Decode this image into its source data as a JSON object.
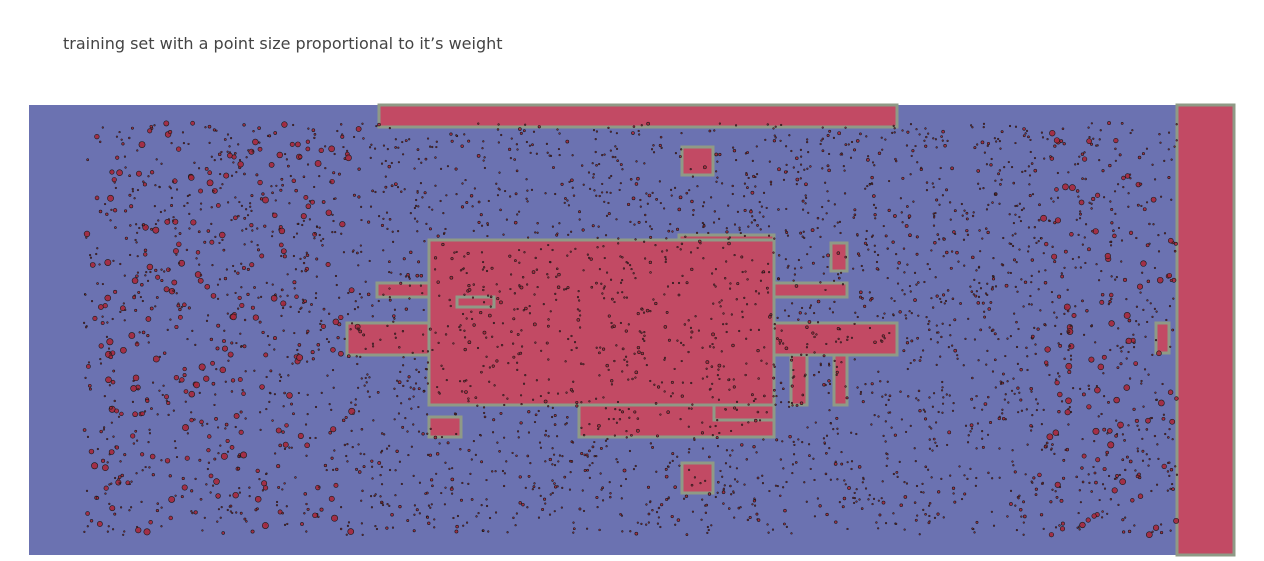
{
  "chart_data": {
    "type": "scatter",
    "title": "training set with a point size proportional to it’s weight",
    "xlabel": "",
    "ylabel": "",
    "xlim": [
      0,
      1205
    ],
    "ylim": [
      0,
      450
    ],
    "grid": false,
    "legend": "none",
    "colors": {
      "class_negative": "#6b72b1",
      "class_positive": "#c24a64",
      "boundary": "#8f9a86",
      "point_fill": "#a8283c",
      "point_edge": "#1a1a1a"
    },
    "regions": [
      {
        "name": "top-strip",
        "x": [
          350,
          868
        ],
        "y": [
          428,
          450
        ]
      },
      {
        "name": "right-strip",
        "x": [
          1148,
          1205
        ],
        "y": [
          0,
          450
        ]
      },
      {
        "name": "small-top",
        "x": [
          653,
          684
        ],
        "y": [
          380,
          408
        ]
      },
      {
        "name": "central-body",
        "x": [
          400,
          745
        ],
        "y": [
          150,
          315
        ]
      },
      {
        "name": "upper-step",
        "x": [
          650,
          745
        ],
        "y": [
          315,
          320
        ]
      },
      {
        "name": "left-upper-arm",
        "x": [
          348,
          400
        ],
        "y": [
          258,
          272
        ]
      },
      {
        "name": "left-lower-arm",
        "x": [
          318,
          400
        ],
        "y": [
          200,
          232
        ]
      },
      {
        "name": "left-hole",
        "x": [
          428,
          465
        ],
        "y": [
          248,
          258
        ]
      },
      {
        "name": "right-upper-arm",
        "x": [
          745,
          818
        ],
        "y": [
          258,
          272
        ]
      },
      {
        "name": "right-lower-arm",
        "x": [
          745,
          868
        ],
        "y": [
          200,
          232
        ]
      },
      {
        "name": "right-small",
        "x": [
          802,
          818
        ],
        "y": [
          284,
          312
        ]
      },
      {
        "name": "bottom-step",
        "x": [
          550,
          745
        ],
        "y": [
          118,
          150
        ]
      },
      {
        "name": "bottom-right-bar",
        "x": [
          685,
          745
        ],
        "y": [
          135,
          150
        ]
      },
      {
        "name": "left-bottom-small",
        "x": [
          400,
          432
        ],
        "y": [
          118,
          138
        ]
      },
      {
        "name": "right-pillar-1",
        "x": [
          762,
          778
        ],
        "y": [
          150,
          200
        ]
      },
      {
        "name": "right-pillar-2",
        "x": [
          805,
          818
        ],
        "y": [
          150,
          200
        ]
      },
      {
        "name": "bottom-small",
        "x": [
          653,
          684
        ],
        "y": [
          62,
          92
        ]
      },
      {
        "name": "far-right-small",
        "x": [
          1127,
          1140
        ],
        "y": [
          202,
          232
        ]
      }
    ],
    "points": {
      "count": 3600,
      "x_range": [
        55,
        1148
      ],
      "y_range": [
        20,
        432
      ],
      "weight_range": [
        0.5,
        3.2
      ],
      "seed": 7
    }
  }
}
